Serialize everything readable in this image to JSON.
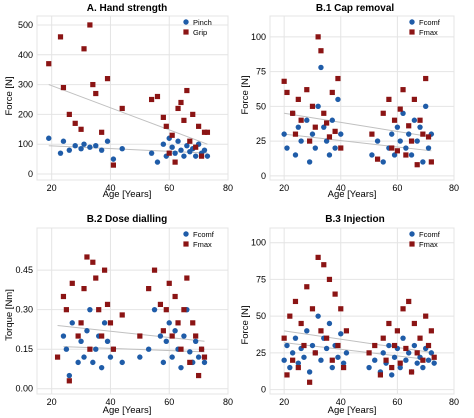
{
  "colors": {
    "blue": "#1f5ca8",
    "red": "#8b1414",
    "trend": "#c0c0c0",
    "grid": "#e4e4e4",
    "axis": "#666666"
  },
  "panels": [
    {
      "title": "A. Hand strength",
      "xlabel": "Age [Years]",
      "ylabel": "Force [N]",
      "xticks": [
        "20",
        "40",
        "60",
        "80"
      ],
      "yticks": [
        "0",
        "100",
        "200",
        "300",
        "400",
        "500"
      ],
      "legend": [
        "Pinch",
        "Grip"
      ]
    },
    {
      "title": "B.1 Cap removal",
      "xlabel": "Age [Years]",
      "ylabel": "Force [N]",
      "xticks": [
        "20",
        "40",
        "60",
        "80"
      ],
      "yticks": [
        "0",
        "25",
        "50",
        "75",
        "100"
      ],
      "legend": [
        "Fcomf",
        "Fmax"
      ]
    },
    {
      "title": "B.2 Dose dialling",
      "xlabel": "Age [Years]",
      "ylabel": "Torque [Nm]",
      "xticks": [
        "20",
        "40",
        "60",
        "80"
      ],
      "yticks": [
        "0.00",
        "0.15",
        "0.30",
        "0.45"
      ],
      "legend": [
        "Fcomf",
        "Fmax"
      ]
    },
    {
      "title": "B.3 Injection",
      "xlabel": "Age [Years]",
      "ylabel": "Force [N]",
      "xticks": [
        "20",
        "40",
        "60",
        "80"
      ],
      "yticks": [
        "0",
        "25",
        "50",
        "75",
        "100"
      ],
      "legend": [
        "Fcomf",
        "Fmax"
      ]
    }
  ],
  "chart_data": [
    {
      "type": "scatter",
      "title": "A. Hand strength",
      "xlabel": "Age [Years]",
      "ylabel": "Force [N]",
      "xlim": [
        15,
        80
      ],
      "ylim": [
        -20,
        530
      ],
      "grid": true,
      "legend_position": "top-right",
      "series": [
        {
          "name": "Pinch",
          "color": "#1f5ca8",
          "marker": "circle",
          "x": [
            19,
            23,
            24,
            26,
            28,
            30,
            31,
            33,
            35,
            37,
            39,
            41,
            44,
            54,
            56,
            58,
            59,
            60,
            61,
            62,
            63,
            64,
            65,
            66,
            67,
            68,
            69,
            70,
            71,
            72,
            73
          ],
          "y": [
            120,
            70,
            110,
            80,
            95,
            85,
            100,
            90,
            95,
            80,
            110,
            50,
            85,
            70,
            40,
            100,
            60,
            120,
            90,
            70,
            110,
            80,
            60,
            95,
            75,
            85,
            60,
            100,
            70,
            80,
            60
          ],
          "trend": [
            [
              19,
              95
            ],
            [
              73,
              70
            ]
          ]
        },
        {
          "name": "Grip",
          "color": "#8b1414",
          "marker": "square",
          "x": [
            19,
            23,
            24,
            26,
            28,
            30,
            31,
            33,
            34,
            35,
            37,
            39,
            41,
            44,
            54,
            56,
            58,
            59,
            60,
            61,
            62,
            63,
            64,
            65,
            66,
            67,
            68,
            69,
            70,
            71,
            72,
            73
          ],
          "y": [
            370,
            460,
            290,
            200,
            170,
            150,
            420,
            500,
            300,
            270,
            140,
            320,
            30,
            220,
            250,
            260,
            190,
            160,
            70,
            130,
            40,
            220,
            240,
            180,
            280,
            110,
            200,
            90,
            160,
            60,
            140,
            140
          ],
          "trend": [
            [
              19,
              300
            ],
            [
              73,
              100
            ]
          ]
        }
      ]
    },
    {
      "type": "scatter",
      "title": "B.1 Cap removal",
      "xlabel": "Age [Years]",
      "ylabel": "Force [N]",
      "xlim": [
        15,
        80
      ],
      "ylim": [
        -3,
        115
      ],
      "grid": true,
      "legend_position": "top-right",
      "series": [
        {
          "name": "Fcomf",
          "color": "#1f5ca8",
          "marker": "circle",
          "x": [
            20,
            21,
            23,
            24,
            25,
            26,
            28,
            29,
            30,
            31,
            32,
            33,
            34,
            35,
            36,
            37,
            38,
            39,
            40,
            51,
            53,
            55,
            57,
            58,
            59,
            60,
            61,
            62,
            63,
            64,
            65,
            66,
            67,
            68,
            69,
            70,
            71,
            72
          ],
          "y": [
            30,
            20,
            45,
            15,
            35,
            25,
            40,
            10,
            30,
            20,
            50,
            78,
            35,
            25,
            15,
            40,
            20,
            55,
            30,
            15,
            25,
            10,
            20,
            30,
            15,
            35,
            25,
            45,
            20,
            30,
            15,
            40,
            25,
            35,
            10,
            50,
            20,
            30
          ],
          "trend": [
            [
              20,
              30
            ],
            [
              72,
              18
            ]
          ]
        },
        {
          "name": "Fmax",
          "color": "#8b1414",
          "marker": "square",
          "x": [
            20,
            21,
            23,
            24,
            25,
            26,
            28,
            29,
            30,
            31,
            32,
            33,
            34,
            35,
            36,
            37,
            38,
            39,
            40,
            51,
            53,
            55,
            57,
            58,
            59,
            60,
            61,
            62,
            63,
            64,
            65,
            66,
            67,
            68,
            69,
            70,
            71,
            72
          ],
          "y": [
            68,
            60,
            45,
            30,
            55,
            40,
            62,
            25,
            50,
            35,
            100,
            90,
            45,
            38,
            28,
            60,
            32,
            70,
            20,
            30,
            12,
            45,
            55,
            20,
            40,
            18,
            48,
            62,
            15,
            36,
            25,
            55,
            8,
            40,
            30,
            70,
            28,
            10
          ],
          "trend": [
            [
              20,
              45
            ],
            [
              72,
              28
            ]
          ]
        }
      ]
    },
    {
      "type": "scatter",
      "title": "B.2 Dose dialling",
      "xlabel": "Age [Years]",
      "ylabel": "Torque [Nm]",
      "xlim": [
        15,
        80
      ],
      "ylim": [
        -0.02,
        0.61
      ],
      "grid": true,
      "legend_position": "top-right",
      "series": [
        {
          "name": "Fcomf",
          "color": "#1f5ca8",
          "marker": "circle",
          "x": [
            24,
            25,
            26,
            27,
            29,
            30,
            31,
            32,
            33,
            34,
            35,
            36,
            37,
            38,
            39,
            40,
            41,
            44,
            50,
            53,
            55,
            57,
            58,
            59,
            60,
            61,
            62,
            63,
            64,
            65,
            66,
            67,
            68,
            69,
            70,
            71,
            72
          ],
          "y": [
            0.2,
            0.15,
            0.05,
            0.25,
            0.1,
            0.18,
            0.12,
            0.22,
            0.3,
            0.1,
            0.15,
            0.2,
            0.08,
            0.25,
            0.18,
            0.12,
            0.15,
            0.1,
            0.12,
            0.15,
            0.3,
            0.2,
            0.1,
            0.18,
            0.25,
            0.12,
            0.22,
            0.15,
            0.08,
            0.2,
            0.3,
            0.14,
            0.1,
            0.18,
            0.12,
            0.15,
            0.1
          ],
          "trend": [
            [
              24,
              0.16
            ],
            [
              72,
              0.14
            ]
          ]
        },
        {
          "name": "Fmax",
          "color": "#8b1414",
          "marker": "square",
          "x": [
            22,
            24,
            25,
            26,
            27,
            29,
            30,
            31,
            32,
            33,
            34,
            35,
            36,
            37,
            38,
            39,
            40,
            41,
            44,
            50,
            53,
            55,
            57,
            58,
            59,
            60,
            61,
            62,
            63,
            64,
            65,
            66,
            67,
            68,
            69,
            70,
            71,
            72
          ],
          "y": [
            0.12,
            0.35,
            0.3,
            0.03,
            0.4,
            0.2,
            0.25,
            0.38,
            0.5,
            0.15,
            0.48,
            0.42,
            0.3,
            0.2,
            0.45,
            0.32,
            0.25,
            0.15,
            0.28,
            0.2,
            0.38,
            0.45,
            0.32,
            0.22,
            0.3,
            0.4,
            0.2,
            0.35,
            0.25,
            0.15,
            0.3,
            0.42,
            0.1,
            0.25,
            0.2,
            0.05,
            0.15,
            0.12
          ],
          "trend": [
            [
              22,
              0.24
            ],
            [
              72,
              0.18
            ]
          ]
        }
      ]
    },
    {
      "type": "scatter",
      "title": "B.3 Injection",
      "xlabel": "Age [Years]",
      "ylabel": "Force [N]",
      "xlim": [
        15,
        80
      ],
      "ylim": [
        -3,
        110
      ],
      "grid": true,
      "legend_position": "top-right",
      "series": [
        {
          "name": "Fcomf",
          "color": "#1f5ca8",
          "marker": "circle",
          "x": [
            20,
            21,
            22,
            23,
            24,
            25,
            26,
            27,
            28,
            29,
            30,
            31,
            32,
            33,
            34,
            35,
            36,
            37,
            38,
            39,
            40,
            41,
            42,
            50,
            52,
            54,
            55,
            56,
            57,
            58,
            59,
            60,
            61,
            62,
            63,
            64,
            65,
            66,
            67,
            68,
            69,
            70,
            71,
            72,
            73
          ],
          "y": [
            20,
            30,
            15,
            25,
            35,
            18,
            28,
            22,
            40,
            12,
            30,
            25,
            50,
            20,
            35,
            28,
            45,
            15,
            30,
            22,
            38,
            18,
            25,
            15,
            20,
            12,
            25,
            18,
            30,
            10,
            22,
            28,
            15,
            35,
            20,
            25,
            12,
            30,
            18,
            22,
            15,
            28,
            20,
            25,
            18
          ],
          "trend": [
            [
              20,
              32
            ],
            [
              73,
              20
            ]
          ]
        },
        {
          "name": "Fmax",
          "color": "#8b1414",
          "marker": "square",
          "x": [
            20,
            21,
            22,
            23,
            24,
            25,
            26,
            27,
            28,
            29,
            30,
            31,
            32,
            33,
            34,
            35,
            36,
            37,
            38,
            39,
            40,
            41,
            42,
            50,
            52,
            54,
            55,
            56,
            57,
            58,
            59,
            60,
            61,
            62,
            63,
            64,
            65,
            66,
            67,
            68,
            69,
            70,
            71,
            72,
            73
          ],
          "y": [
            35,
            10,
            50,
            20,
            60,
            15,
            45,
            30,
            70,
            5,
            55,
            25,
            90,
            40,
            85,
            35,
            75,
            20,
            65,
            30,
            55,
            15,
            40,
            25,
            30,
            10,
            35,
            20,
            45,
            15,
            30,
            40,
            18,
            55,
            28,
            60,
            12,
            45,
            25,
            35,
            20,
            50,
            30,
            40,
            22
          ],
          "trend": [
            [
              20,
              40
            ],
            [
              73,
              25
            ]
          ]
        }
      ]
    }
  ]
}
